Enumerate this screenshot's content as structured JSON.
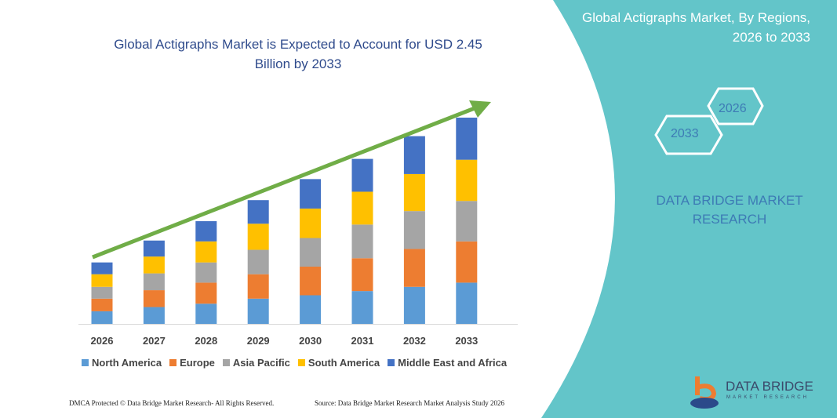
{
  "header": {
    "title": "Global Actigraphs Market is Expected to Account for USD 2.45 Billion by 2033"
  },
  "side": {
    "title": "Global Actigraphs Market, By Regions, 2026 to 2033",
    "hex_left": "2033",
    "hex_right": "2026",
    "brand": "DATA BRIDGE MARKET RESEARCH"
  },
  "footer": {
    "left": "DMCA Protected © Data Bridge Market Research- All Rights Reserved.",
    "right": "Source: Data Bridge Market Research Market Analysis Study 2026"
  },
  "logo": {
    "name": "DATA BRIDGE",
    "sub": "MARKET RESEARCH"
  },
  "colors": {
    "background": "#63c5c9",
    "title": "#2f4b8c",
    "arrow": "#70ad47"
  },
  "chart_data": {
    "type": "bar",
    "stacked": true,
    "title": "Global Actigraphs Market is Expected to Account for USD 2.45 Billion by 2033",
    "xlabel": "",
    "ylabel": "",
    "unit": "USD Billion (estimated, no axis shown)",
    "ylim": [
      0,
      2.45
    ],
    "grid": false,
    "legend_position": "bottom",
    "categories": [
      "2026",
      "2027",
      "2028",
      "2029",
      "2030",
      "2031",
      "2032",
      "2033"
    ],
    "series": [
      {
        "name": "North America",
        "color": "#5b9bd5",
        "values": [
          0.15,
          0.2,
          0.24,
          0.3,
          0.34,
          0.39,
          0.44,
          0.49
        ]
      },
      {
        "name": "Europe",
        "color": "#ed7d31",
        "values": [
          0.15,
          0.2,
          0.25,
          0.29,
          0.34,
          0.39,
          0.45,
          0.49
        ]
      },
      {
        "name": "Asia Pacific",
        "color": "#a5a5a5",
        "values": [
          0.14,
          0.2,
          0.24,
          0.29,
          0.34,
          0.4,
          0.45,
          0.48
        ]
      },
      {
        "name": "South America",
        "color": "#ffc000",
        "values": [
          0.15,
          0.2,
          0.25,
          0.31,
          0.35,
          0.39,
          0.44,
          0.49
        ]
      },
      {
        "name": "Middle East and Africa",
        "color": "#4472c4",
        "values": [
          0.14,
          0.19,
          0.24,
          0.28,
          0.35,
          0.39,
          0.45,
          0.5
        ]
      }
    ],
    "annotations": [
      "upward trend arrow"
    ]
  }
}
